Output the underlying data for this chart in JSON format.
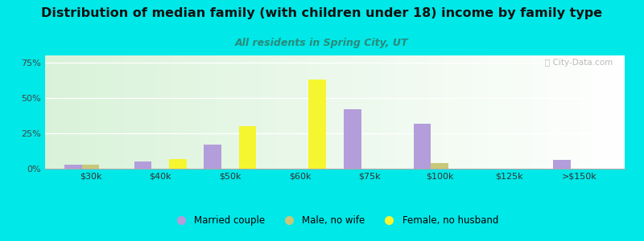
{
  "title": "Distribution of median family (with children under 18) income by family type",
  "subtitle": "All residents in Spring City, UT",
  "categories": [
    "$30k",
    "$40k",
    "$50k",
    "$60k",
    "$75k",
    "$100k",
    "$125k",
    ">$150k"
  ],
  "married_couple": [
    3,
    5,
    17,
    0,
    42,
    32,
    0,
    6
  ],
  "male_no_wife": [
    3,
    0,
    0,
    0,
    0,
    4,
    0,
    0
  ],
  "female_no_husband": [
    0,
    7,
    30,
    63,
    0,
    0,
    0,
    0
  ],
  "color_married": "#b39ddb",
  "color_male": "#c8c87a",
  "color_female": "#f5f530",
  "bg_outer": "#00e8e8",
  "yticks": [
    0,
    25,
    50,
    75
  ],
  "ylim": [
    0,
    80
  ],
  "bar_width": 0.25,
  "legend_labels": [
    "Married couple",
    "Male, no wife",
    "Female, no husband"
  ],
  "watermark": "ⓘ City-Data.com",
  "title_fontsize": 11.5,
  "subtitle_fontsize": 9
}
